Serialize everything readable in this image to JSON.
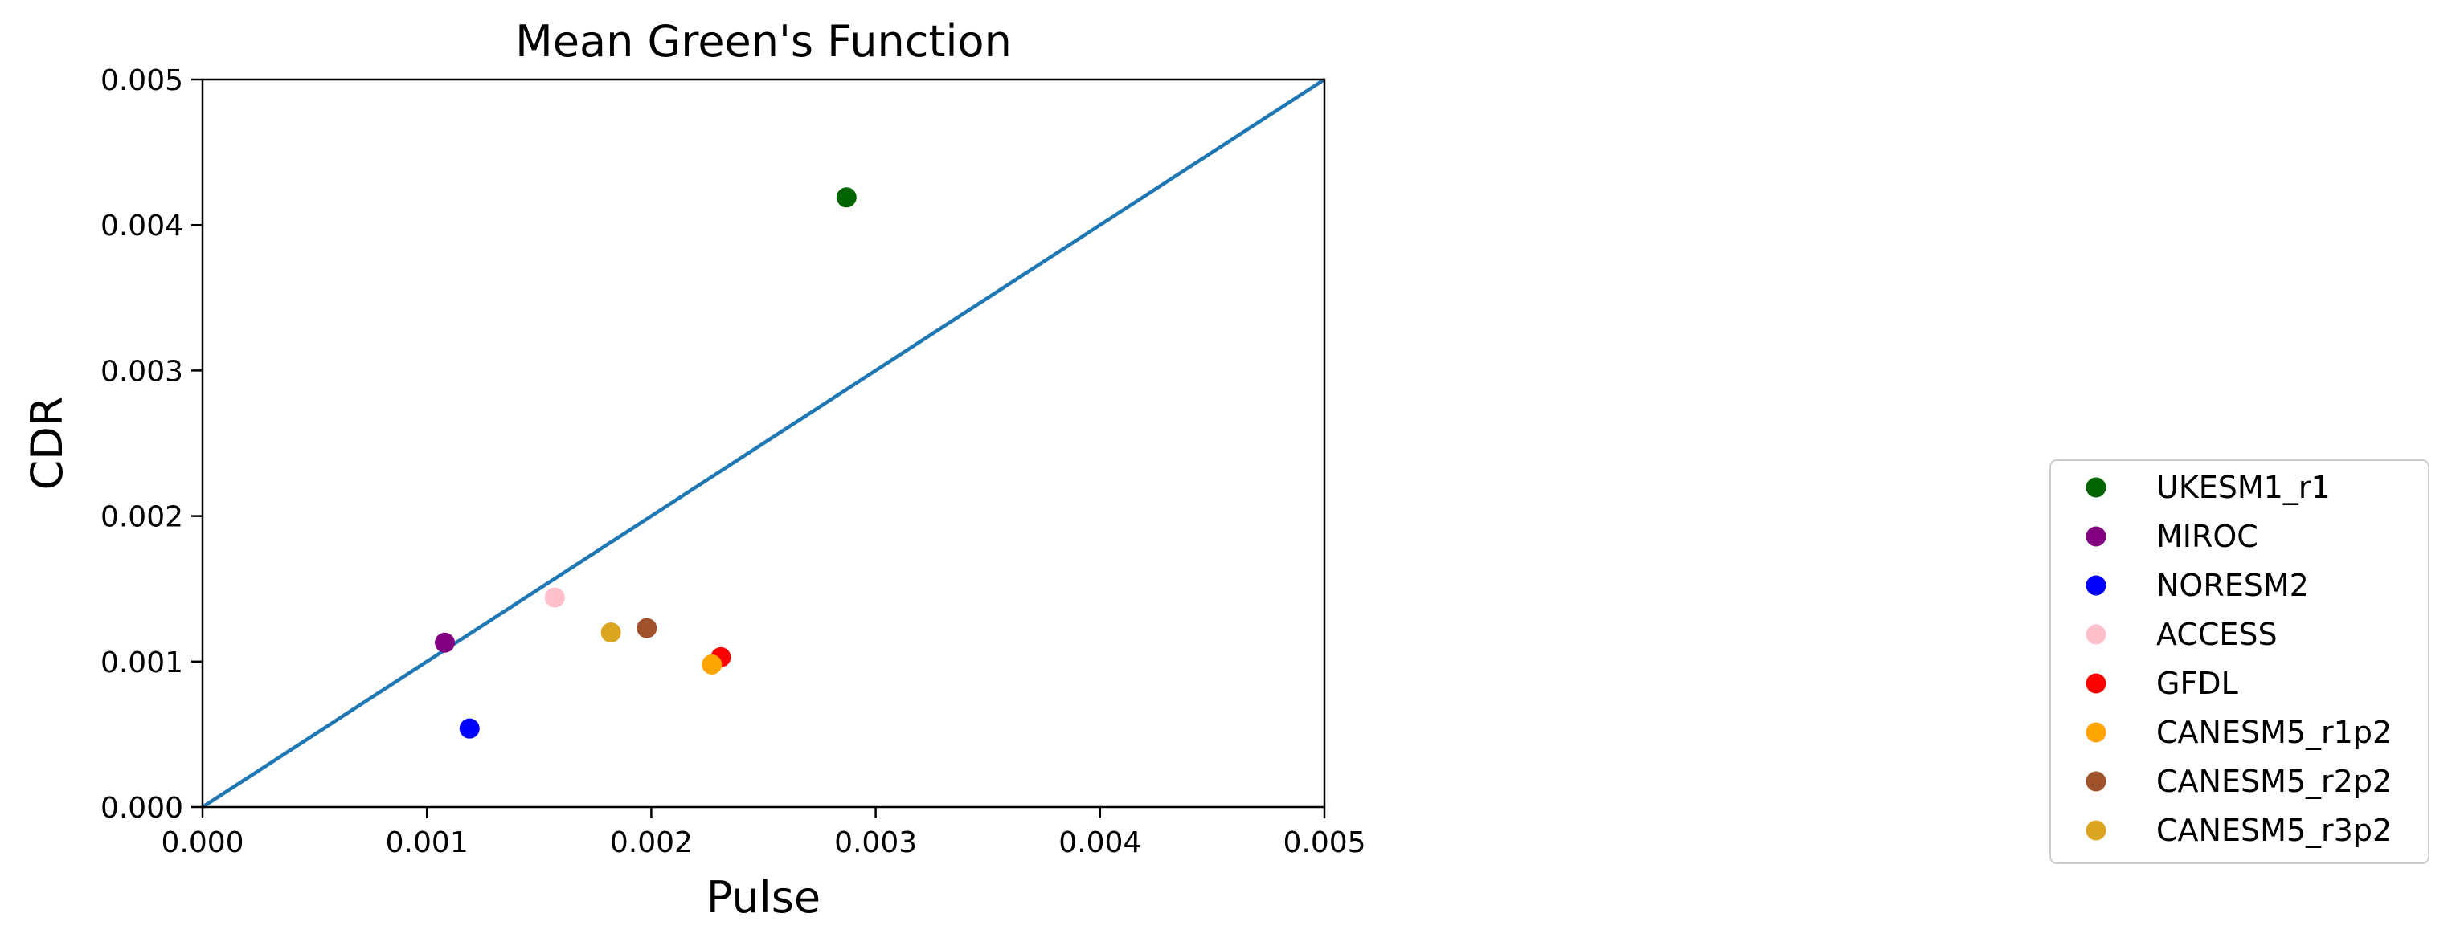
{
  "chart_data": {
    "type": "scatter",
    "title": "Mean Green's Function",
    "xlabel": "Pulse",
    "ylabel": "CDR",
    "xlim": [
      0.0,
      0.005
    ],
    "ylim": [
      0.0,
      0.005
    ],
    "xticks": [
      "0.000",
      "0.001",
      "0.002",
      "0.003",
      "0.004",
      "0.005"
    ],
    "yticks": [
      "0.000",
      "0.001",
      "0.002",
      "0.003",
      "0.004",
      "0.005"
    ],
    "grid": false,
    "legend_position": "lower-right, outside plot",
    "reference_line": {
      "x": [
        0.0,
        0.005
      ],
      "y": [
        0.0,
        0.005
      ],
      "color": "#1f77b4"
    },
    "series": [
      {
        "name": "UKESM1_r1",
        "color": "#006400",
        "x": 0.00287,
        "y": 0.00419
      },
      {
        "name": "MIROC",
        "color": "#800080",
        "x": 0.00108,
        "y": 0.00113
      },
      {
        "name": "NORESM2",
        "color": "#0000ff",
        "x": 0.00119,
        "y": 0.00054
      },
      {
        "name": "ACCESS",
        "color": "#ffc0cb",
        "x": 0.00157,
        "y": 0.00144
      },
      {
        "name": "GFDL",
        "color": "#ff0000",
        "x": 0.00231,
        "y": 0.00103
      },
      {
        "name": "CANESM5_r1p2",
        "color": "#ffa500",
        "x": 0.00227,
        "y": 0.00098
      },
      {
        "name": "CANESM5_r2p2",
        "color": "#a0522d",
        "x": 0.00198,
        "y": 0.00123
      },
      {
        "name": "CANESM5_r3p2",
        "color": "#daa520",
        "x": 0.00182,
        "y": 0.0012
      }
    ]
  }
}
